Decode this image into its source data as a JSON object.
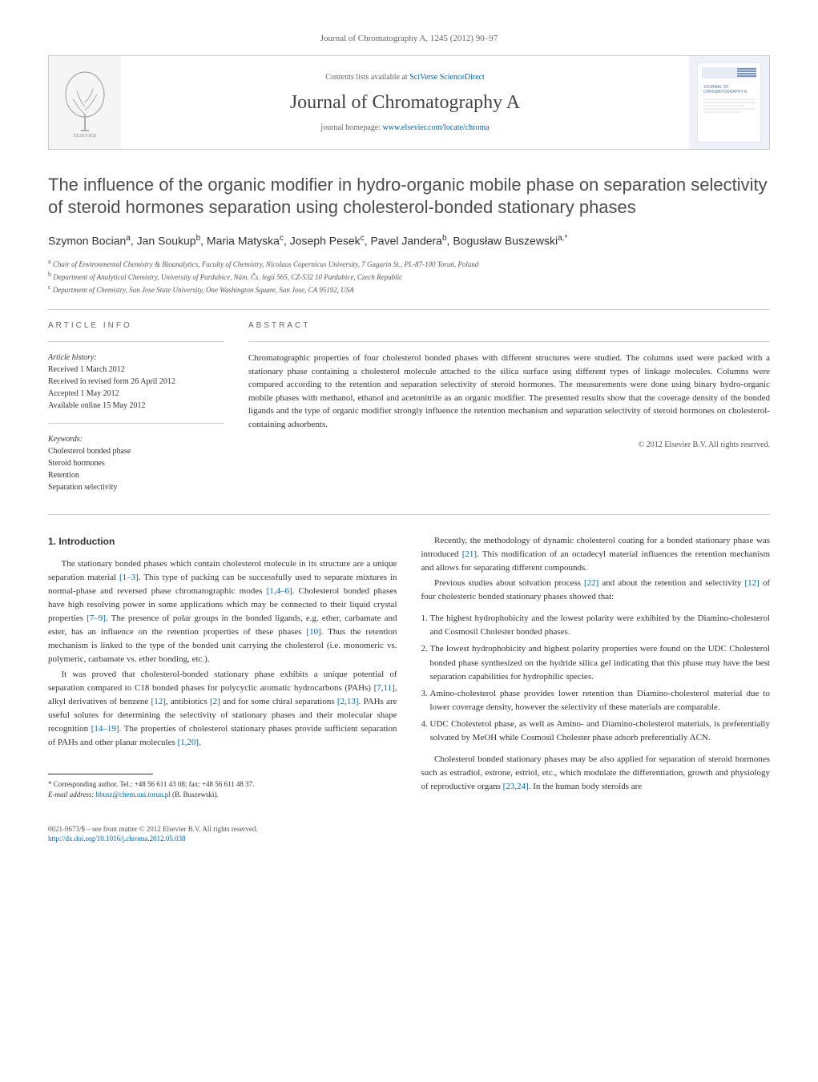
{
  "header": {
    "citation": "Journal of Chromatography A, 1245 (2012) 90–97",
    "contents_prefix": "Contents lists available at ",
    "contents_link": "SciVerse ScienceDirect",
    "journal_name": "Journal of Chromatography A",
    "homepage_prefix": "journal homepage: ",
    "homepage_url": "www.elsevier.com/locate/chroma"
  },
  "title": "The influence of the organic modifier in hydro-organic mobile phase on separation selectivity of steroid hormones separation using cholesterol-bonded stationary phases",
  "authors_html": "Szymon Bocian<sup>a</sup>, Jan Soukup<sup>b</sup>, Maria Matyska<sup>c</sup>, Joseph Pesek<sup>c</sup>, Pavel Jandera<sup>b</sup>, Bogusław Buszewski<sup>a,*</sup>",
  "affiliations": [
    {
      "sup": "a",
      "text": "Chair of Environmental Chemistry & Bioanalytics, Faculty of Chemistry, Nicolaus Copernicus University, 7 Gagarin St., PL-87-100 Toruń, Poland"
    },
    {
      "sup": "b",
      "text": "Department of Analytical Chemistry, University of Pardubice, Nám. Čs. legií 565, CZ-532 10 Pardubice, Czech Republic"
    },
    {
      "sup": "c",
      "text": "Department of Chemistry, San Jose State University, One Washington Square, San Jose, CA 95192, USA"
    }
  ],
  "article_info_label": "ARTICLE INFO",
  "abstract_label": "ABSTRACT",
  "history": {
    "label": "Article history:",
    "received": "Received 1 March 2012",
    "revised": "Received in revised form 26 April 2012",
    "accepted": "Accepted 1 May 2012",
    "online": "Available online 15 May 2012"
  },
  "keywords": {
    "label": "Keywords:",
    "items": [
      "Cholesterol bonded phase",
      "Steroid hormones",
      "Retention",
      "Separation selectivity"
    ]
  },
  "abstract": "Chromatographic properties of four cholesterol bonded phases with different structures were studied. The columns used were packed with a stationary phase containing a cholesterol molecule attached to the silica surface using different types of linkage molecules. Columns were compared according to the retention and separation selectivity of steroid hormones. The measurements were done using binary hydro-organic mobile phases with methanol, ethanol and acetonitrile as an organic modifier. The presented results show that the coverage density of the bonded ligands and the type of organic modifier strongly influence the retention mechanism and separation selectivity of steroid hormones on cholesterol-containing adsorbents.",
  "copyright": "© 2012 Elsevier B.V. All rights reserved.",
  "intro_heading": "1. Introduction",
  "left_paragraphs": [
    "The stationary bonded phases which contain cholesterol molecule in its structure are a unique separation material <span class=\"ref\">[1–3]</span>. This type of packing can be successfully used to separate mixtures in normal-phase and reversed phase chromatographic modes <span class=\"ref\">[1,4–6]</span>. Cholesterol bonded phases have high resolving power in some applications which may be connected to their liquid crystal properties <span class=\"ref\">[7–9]</span>. The presence of polar groups in the bonded ligands, e.g. ether, carbamate and ester, has an influence on the retention properties of these phases <span class=\"ref\">[10]</span>. Thus the retention mechanism is linked to the type of the bonded unit carrying the cholesterol (i.e. monomeric vs. polymeric, carbamate vs. ether bonding, etc.).",
    "It was proved that cholesterol-bonded stationary phase exhibits a unique potential of separation compared to C18 bonded phases for polycyclic aromatic hydrocarbons (PAHs) <span class=\"ref\">[7,11]</span>, alkyl derivatives of benzene <span class=\"ref\">[12]</span>, antibiotics <span class=\"ref\">[2]</span> and for some chiral separations <span class=\"ref\">[2,13]</span>. PAHs are useful solutes for determining the selectivity of stationary phases and their molecular shape recognition <span class=\"ref\">[14–19]</span>. The properties of cholesterol stationary phases provide sufficient separation of PAHs and other planar molecules <span class=\"ref\">[1,20]</span>."
  ],
  "right_paragraphs_top": [
    "Recently, the methodology of dynamic cholesterol coating for a bonded stationary phase was introduced <span class=\"ref\">[21]</span>. This modification of an octadecyl material influences the retention mechanism and allows for separating different compounds.",
    "Previous studies about solvation process <span class=\"ref\">[22]</span> and about the retention and selectivity <span class=\"ref\">[12]</span> of four cholesteric bonded stationary phases showed that:"
  ],
  "numbered_list": [
    "The highest hydrophobicity and the lowest polarity were exhibited by the Diamino-cholesterol and Cosmosil Cholester bonded phases.",
    "The lowest hydrophobicity and highest polarity properties were found on the UDC Cholesterol bonded phase synthesized on the hydride silica gel indicating that this phase may have the best separation capabilities for hydrophilic species.",
    "Amino-cholesterol phase provides lower retention than Diamino-cholesterol material due to lower coverage density, however the selectivity of these materials are comparable.",
    "UDC Cholesterol phase, as well as Amino- and Diamino-cholesterol materials, is preferentially solvated by MeOH while Cosmosil Cholester phase adsorb preferentially ACN."
  ],
  "right_paragraph_bottom": "Cholesterol bonded stationary phases may be also applied for separation of steroid hormones such as estradiol, estrone, estriol, etc., which modulate the differentiation, growth and physiology of reproductive organs <span class=\"ref\">[23,24]</span>. In the human body steroids are",
  "footnote": {
    "marker": "*",
    "text": "Corresponding author. Tel.: +48 56 611 43 08; fax: +48 56 611 48 37.",
    "email_label": "E-mail address:",
    "email": "bbusz@chem.uni.torun.pl",
    "suffix": "(B. Buszewski)."
  },
  "footer": {
    "issn": "0021-9673/$ – see front matter © 2012 Elsevier B.V. All rights reserved.",
    "doi": "http://dx.doi.org/10.1016/j.chroma.2012.05.038"
  },
  "colors": {
    "link": "#0066aa",
    "text": "#333333",
    "muted": "#666666",
    "border": "#cccccc"
  }
}
